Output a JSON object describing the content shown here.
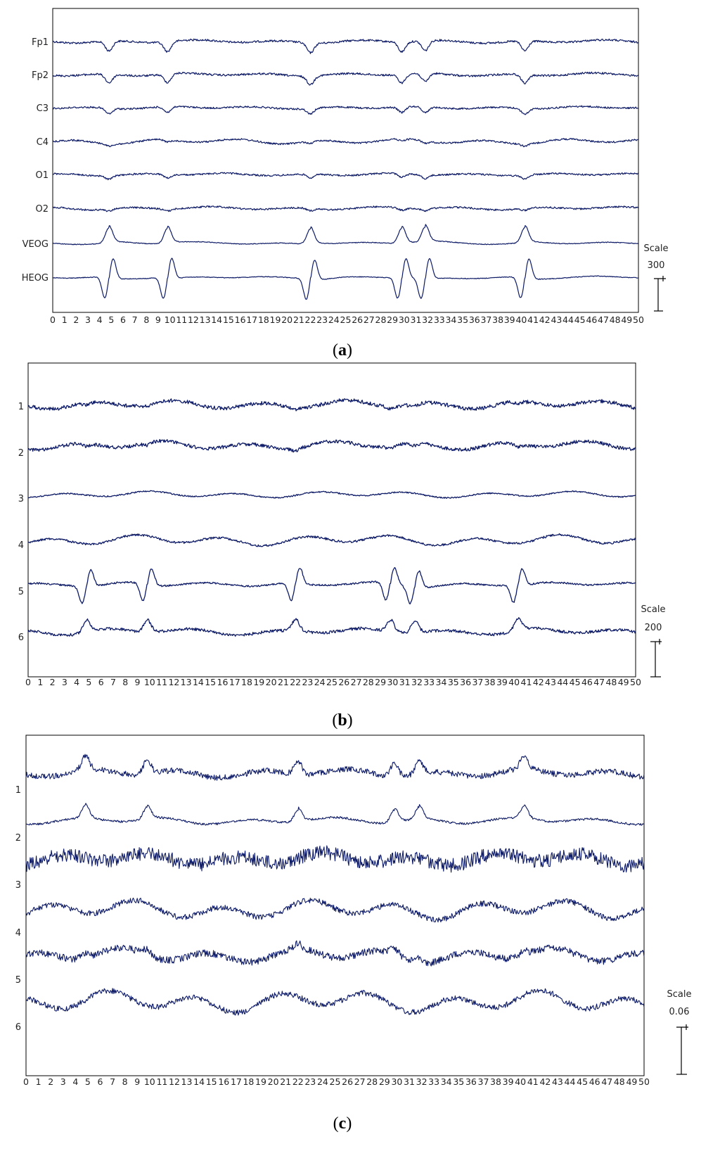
{
  "colors": {
    "trace": "#0d1a66",
    "frame": "#000000",
    "background": "#ffffff"
  },
  "chart_data": [
    {
      "type": "line",
      "panel": "a",
      "caption": "a",
      "channels": [
        "Fp1",
        "Fp2",
        "C3",
        "C4",
        "O1",
        "O2",
        "VEOG",
        "HEOG"
      ],
      "x_ticks": [
        "0",
        "1",
        "2",
        "3",
        "4",
        "5",
        "6",
        "7",
        "8",
        "9",
        "10",
        "11",
        "12",
        "13",
        "14",
        "15",
        "16",
        "17",
        "18",
        "19",
        "20",
        "21",
        "22",
        "23",
        "24",
        "25",
        "26",
        "27",
        "28",
        "29",
        "30",
        "31",
        "32",
        "33",
        "34",
        "35",
        "36",
        "37",
        "38",
        "39",
        "40",
        "41",
        "42",
        "43",
        "44",
        "45",
        "46",
        "47",
        "48",
        "49",
        "50"
      ],
      "xlim": [
        0,
        50
      ],
      "scale_label": "Scale",
      "scale_value": "300",
      "events": [
        4.8,
        9.8,
        22.0,
        29.8,
        31.8,
        40.3
      ]
    },
    {
      "type": "line",
      "panel": "b",
      "caption": "b",
      "channels": [
        "1",
        "2",
        "3",
        "4",
        "5",
        "6"
      ],
      "x_ticks": [
        "0",
        "1",
        "2",
        "3",
        "4",
        "5",
        "6",
        "7",
        "8",
        "9",
        "10",
        "11",
        "12",
        "13",
        "14",
        "15",
        "16",
        "17",
        "18",
        "19",
        "20",
        "21",
        "22",
        "23",
        "24",
        "25",
        "26",
        "27",
        "28",
        "29",
        "30",
        "31",
        "32",
        "33",
        "34",
        "35",
        "36",
        "37",
        "38",
        "39",
        "40",
        "41",
        "42",
        "43",
        "44",
        "45",
        "46",
        "47",
        "48",
        "49",
        "50"
      ],
      "xlim": [
        0,
        50
      ],
      "scale_label": "Scale",
      "scale_value": "200",
      "events": [
        4.8,
        9.8,
        22.0,
        29.8,
        31.8,
        40.3
      ]
    },
    {
      "type": "line",
      "panel": "c",
      "caption": "c",
      "channels": [
        "1",
        "2",
        "3",
        "4",
        "5",
        "6"
      ],
      "x_ticks": [
        "0",
        "1",
        "2",
        "3",
        "4",
        "5",
        "6",
        "7",
        "8",
        "9",
        "10",
        "11",
        "12",
        "13",
        "14",
        "15",
        "16",
        "17",
        "18",
        "19",
        "20",
        "21",
        "22",
        "23",
        "24",
        "25",
        "26",
        "27",
        "28",
        "29",
        "30",
        "31",
        "32",
        "33",
        "34",
        "35",
        "36",
        "37",
        "38",
        "39",
        "40",
        "41",
        "42",
        "43",
        "44",
        "45",
        "46",
        "47",
        "48",
        "49",
        "50"
      ],
      "xlim": [
        0,
        50
      ],
      "scale_label": "Scale",
      "scale_value": "0.06",
      "events": [
        4.8,
        9.8,
        22.0,
        29.8,
        31.8,
        40.3
      ]
    }
  ]
}
